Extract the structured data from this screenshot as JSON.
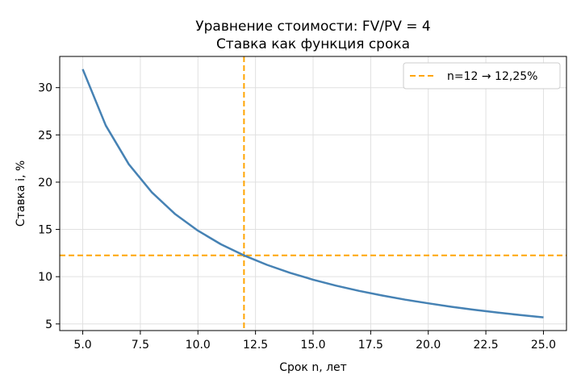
{
  "chart_data": {
    "type": "line",
    "title": "Уравнение стоимости: FV/PV = 4",
    "subtitle": "Ставка как функция срока",
    "xlabel": "Срок n, лет",
    "ylabel": "Ставка i, %",
    "xlim": [
      4.0,
      26.0
    ],
    "ylim": [
      4.3,
      33.3
    ],
    "x_ticks": [
      5.0,
      7.5,
      10.0,
      12.5,
      15.0,
      17.5,
      20.0,
      22.5,
      25.0
    ],
    "x_tick_labels": [
      "5.0",
      "7.5",
      "10.0",
      "12.5",
      "15.0",
      "17.5",
      "20.0",
      "22.5",
      "25.0"
    ],
    "y_ticks": [
      5,
      10,
      15,
      20,
      25,
      30
    ],
    "y_tick_labels": [
      "5",
      "10",
      "15",
      "20",
      "25",
      "30"
    ],
    "grid": true,
    "series": [
      {
        "color": "#4682b4",
        "x": [
          5,
          6,
          7,
          8,
          9,
          10,
          11,
          12,
          13,
          14,
          15,
          16,
          17,
          18,
          19,
          20,
          21,
          22,
          23,
          24,
          25
        ],
        "y": [
          31.95,
          25.99,
          21.9,
          18.92,
          16.65,
          14.87,
          13.43,
          12.25,
          11.25,
          10.41,
          9.68,
          9.05,
          8.5,
          8.01,
          7.57,
          7.18,
          6.82,
          6.5,
          6.21,
          5.94,
          5.7
        ]
      }
    ],
    "reference_lines": {
      "vertical_x": 12,
      "horizontal_y": 12.25,
      "color": "#ffa500",
      "legend_label": "n=12 → 12,25%"
    },
    "legend": {
      "position": "top-right"
    }
  }
}
